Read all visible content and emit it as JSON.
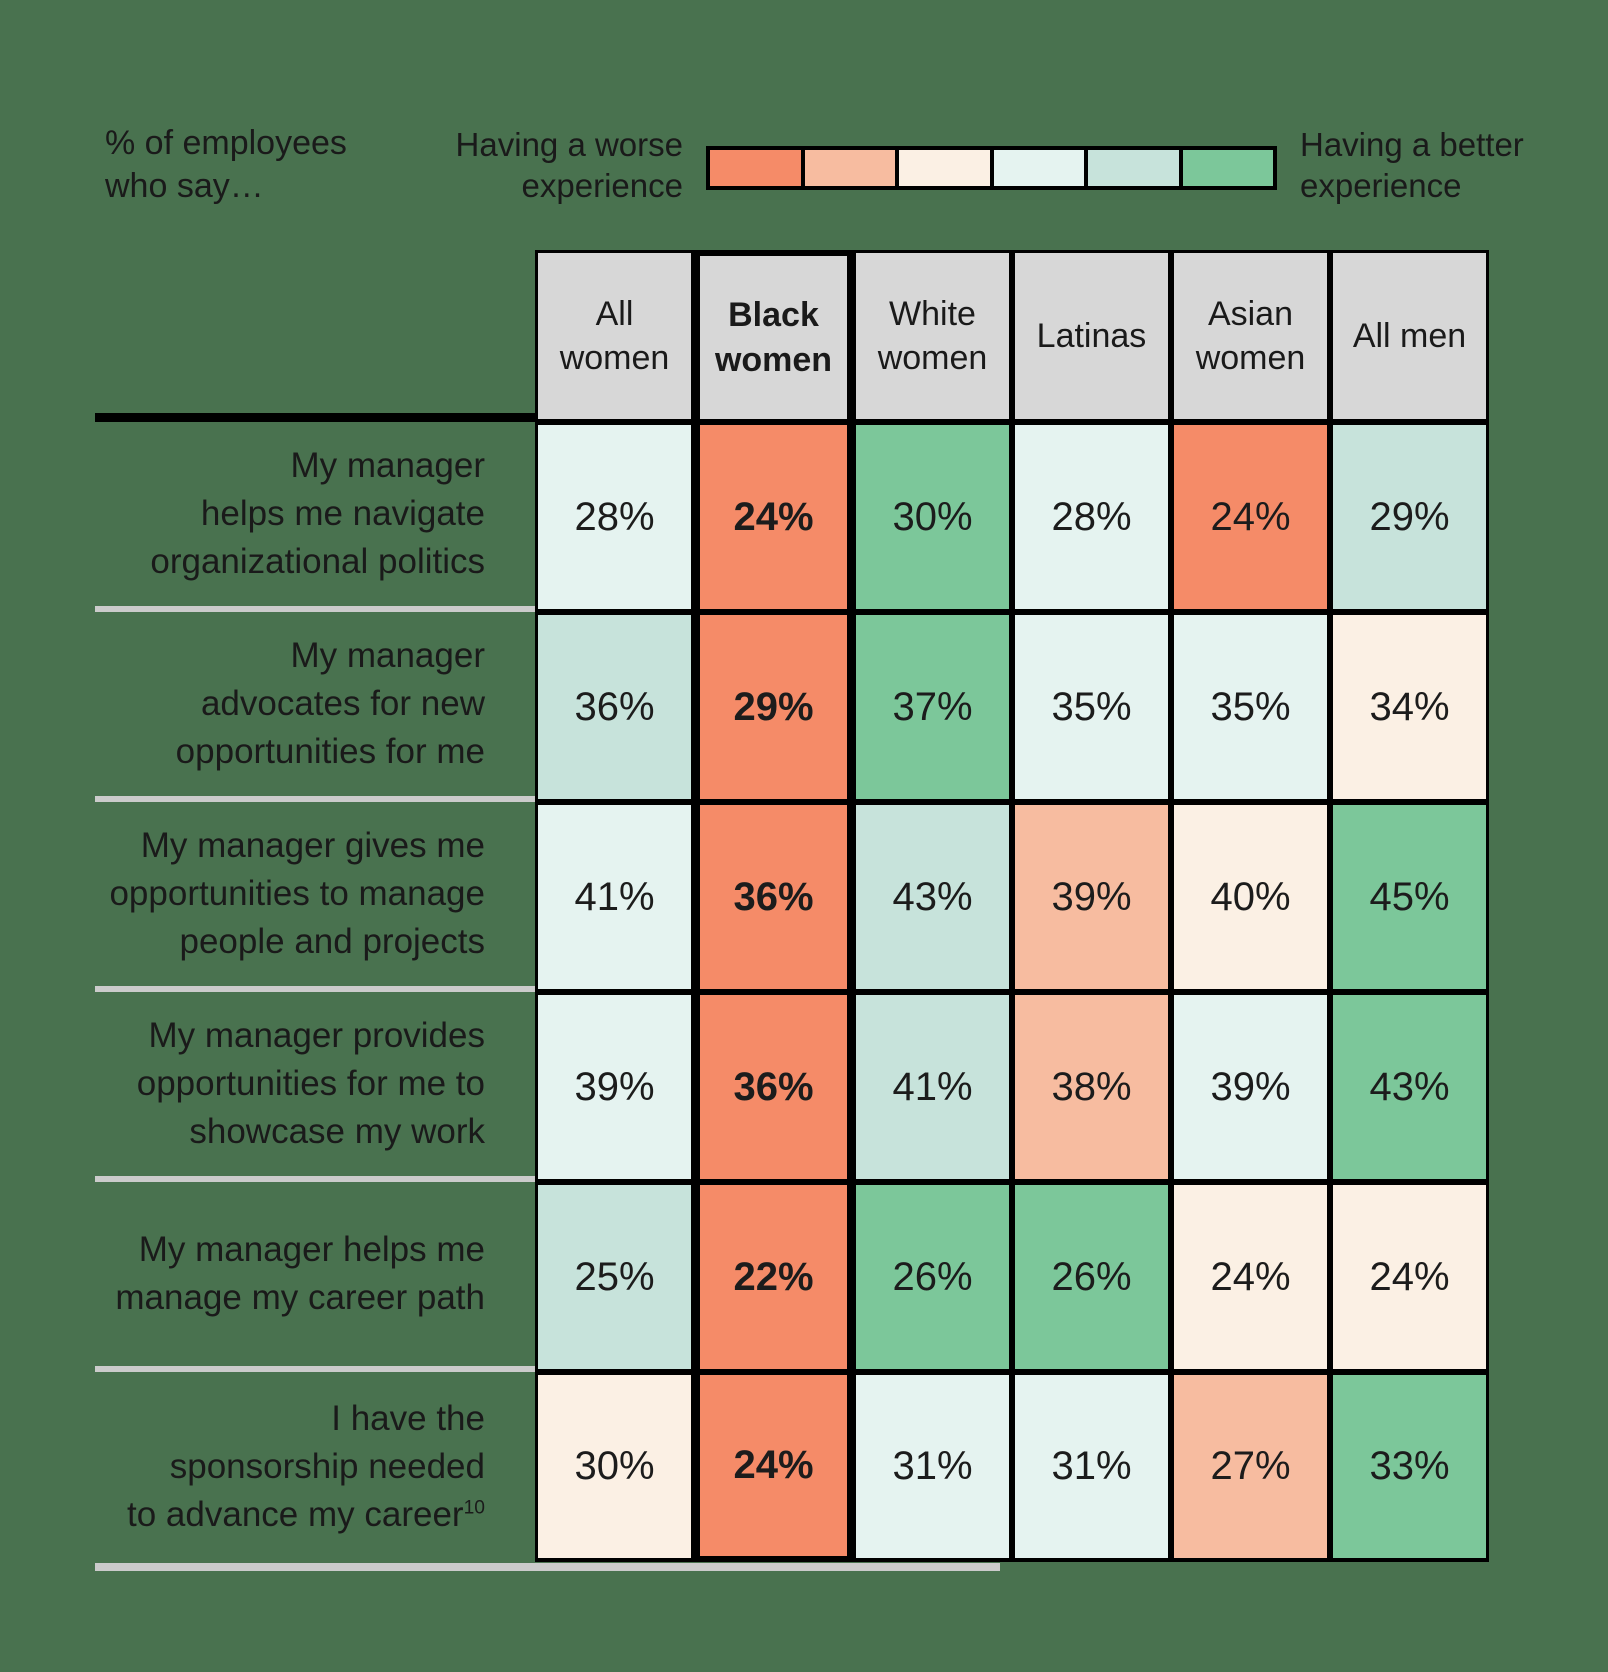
{
  "colors": {
    "background": "#49724F",
    "header_bg": "#D7D7D7",
    "grid_line": "#000000",
    "row_separator": "#CBCBCB",
    "text": "#1A1A1A"
  },
  "chart_data": {
    "type": "heatmap",
    "title": "% of employees\nwho say…",
    "unit": "%",
    "legend": {
      "worse_label": "Having a worse\nexperience",
      "better_label": "Having a better\nexperience",
      "palette": [
        "#F58B68",
        "#F7BCA0",
        "#FBF0E4",
        "#E5F3F0",
        "#C7E3DB",
        "#7CC79A"
      ],
      "palette_meaning": "level 1 = having a worse experience, level 6 = having a better experience"
    },
    "columns": [
      {
        "label": "All\nwomen",
        "emphasis": false
      },
      {
        "label": "Black\nwomen",
        "emphasis": true
      },
      {
        "label": "White\nwomen",
        "emphasis": false
      },
      {
        "label": "Latinas",
        "emphasis": false
      },
      {
        "label": "Asian\nwomen",
        "emphasis": false
      },
      {
        "label": "All men",
        "emphasis": false
      }
    ],
    "rows": [
      {
        "label": "My manager\nhelps me navigate\norganizational politics",
        "note": "",
        "values": [
          28,
          24,
          30,
          28,
          24,
          29
        ],
        "display": [
          "28%",
          "24%",
          "30%",
          "28%",
          "24%",
          "29%"
        ],
        "levels": [
          4,
          1,
          6,
          4,
          1,
          5
        ]
      },
      {
        "label": "My manager\nadvocates for new\nopportunities for me",
        "note": "",
        "values": [
          36,
          29,
          37,
          35,
          35,
          34
        ],
        "display": [
          "36%",
          "29%",
          "37%",
          "35%",
          "35%",
          "34%"
        ],
        "levels": [
          5,
          1,
          6,
          4,
          4,
          3
        ]
      },
      {
        "label": "My manager gives me\nopportunities to manage\npeople and projects",
        "note": "",
        "values": [
          41,
          36,
          43,
          39,
          40,
          45
        ],
        "display": [
          "41%",
          "36%",
          "43%",
          "39%",
          "40%",
          "45%"
        ],
        "levels": [
          4,
          1,
          5,
          2,
          3,
          6
        ]
      },
      {
        "label": "My manager provides\nopportunities for me to\nshowcase my work",
        "note": "",
        "values": [
          39,
          36,
          41,
          38,
          39,
          43
        ],
        "display": [
          "39%",
          "36%",
          "41%",
          "38%",
          "39%",
          "43%"
        ],
        "levels": [
          4,
          1,
          5,
          2,
          4,
          6
        ]
      },
      {
        "label": "My manager helps me\nmanage my career path",
        "note": "",
        "values": [
          25,
          22,
          26,
          26,
          24,
          24
        ],
        "display": [
          "25%",
          "22%",
          "26%",
          "26%",
          "24%",
          "24%"
        ],
        "levels": [
          5,
          1,
          6,
          6,
          3,
          3
        ]
      },
      {
        "label": "I have the\nsponsorship needed\nto advance my career",
        "note": "10",
        "values": [
          30,
          24,
          31,
          31,
          27,
          33
        ],
        "display": [
          "30%",
          "24%",
          "31%",
          "31%",
          "27%",
          "33%"
        ],
        "levels": [
          3,
          1,
          4,
          4,
          2,
          6
        ]
      }
    ]
  }
}
